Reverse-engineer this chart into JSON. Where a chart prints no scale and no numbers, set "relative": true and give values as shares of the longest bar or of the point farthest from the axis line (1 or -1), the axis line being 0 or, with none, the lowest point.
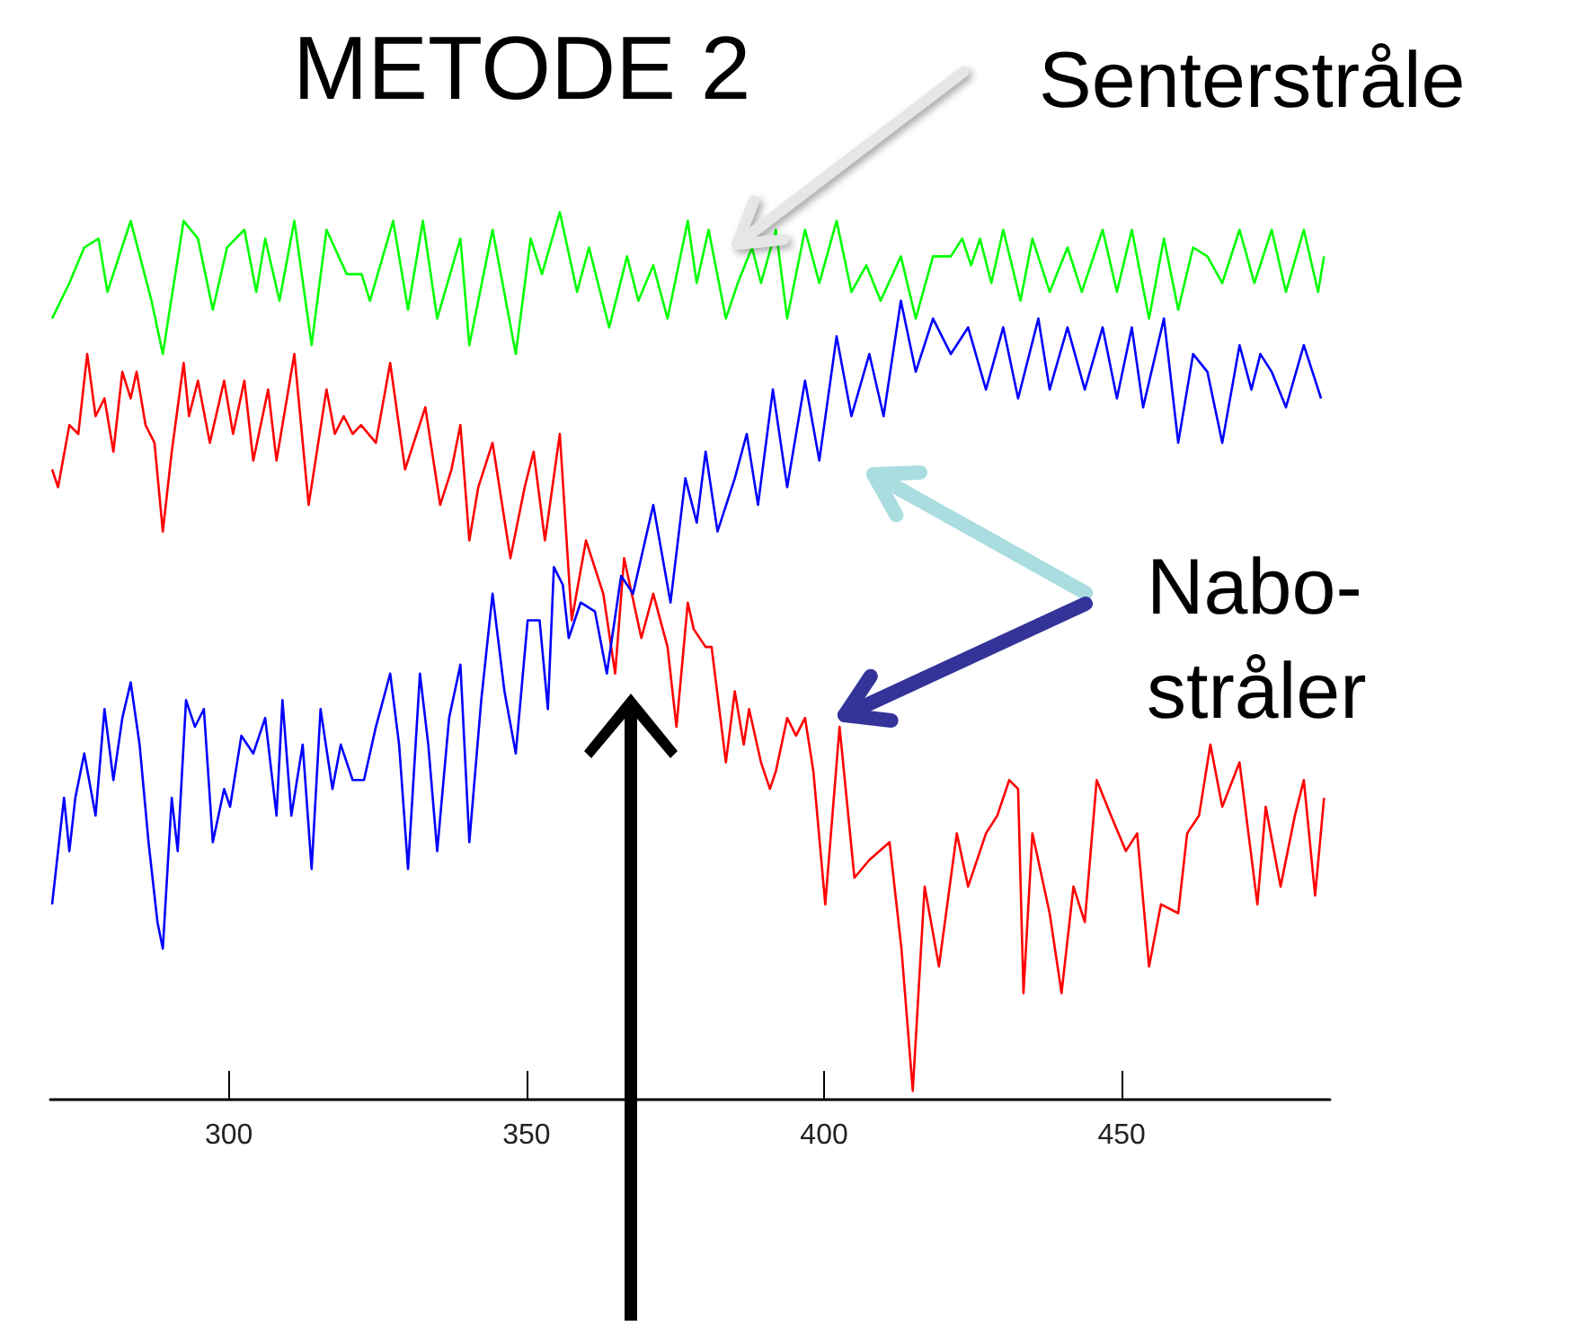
{
  "chart_data": {
    "type": "line",
    "title": "METODE 2",
    "relative": true,
    "xlim": [
      270,
      485
    ],
    "xticks": [
      300,
      350,
      400,
      450
    ],
    "grid": false,
    "annotations": [
      "Senterstråle",
      "Nabo-\nstråler"
    ],
    "series": [
      {
        "color": "#00ff00",
        "x": [
          270.3,
          273.2,
          275.7,
          278.1,
          279.6,
          283.5,
          287.0,
          288.9,
          292.4,
          294.8,
          297.3,
          299.7,
          302.6,
          304.6,
          306.1,
          308.5,
          311.0,
          313.9,
          316.4,
          319.8,
          322.3,
          323.7,
          327.6,
          330.1,
          332.6,
          335.0,
          338.9,
          340.4,
          344.3,
          348.2,
          350.7,
          352.6,
          355.6,
          358.5,
          360.5,
          363.9,
          366.9,
          368.8,
          371.3,
          373.7,
          377.1,
          378.6,
          380.6,
          383.5,
          385.5,
          387.9,
          389.4,
          391.9,
          393.8,
          396.8,
          399.2,
          402.1,
          404.6,
          407.1,
          409.5,
          412.9,
          415.4,
          418.3,
          421.3,
          423.2,
          424.7,
          426.2,
          428.1,
          430.1,
          433.0,
          435.0,
          437.9,
          440.9,
          443.3,
          446.8,
          449.2,
          451.7,
          454.6,
          457.1,
          459.5,
          462.0,
          464.4,
          466.9,
          469.8,
          472.3,
          475.2,
          477.6,
          480.6,
          483.0,
          484.0
        ],
        "values": [
          0.88,
          0.92,
          0.96,
          0.97,
          0.91,
          0.99,
          0.9,
          0.84,
          0.99,
          0.97,
          0.89,
          0.96,
          0.98,
          0.91,
          0.97,
          0.9,
          0.99,
          0.85,
          0.98,
          0.93,
          0.93,
          0.9,
          0.99,
          0.89,
          0.99,
          0.88,
          0.97,
          0.85,
          0.98,
          0.84,
          0.97,
          0.93,
          1.0,
          0.91,
          0.96,
          0.87,
          0.95,
          0.9,
          0.94,
          0.88,
          0.99,
          0.92,
          0.98,
          0.88,
          0.92,
          0.96,
          0.92,
          0.98,
          0.88,
          0.98,
          0.92,
          0.99,
          0.91,
          0.94,
          0.9,
          0.95,
          0.88,
          0.95,
          0.95,
          0.97,
          0.94,
          0.97,
          0.92,
          0.98,
          0.9,
          0.97,
          0.91,
          0.96,
          0.91,
          0.98,
          0.91,
          0.98,
          0.88,
          0.97,
          0.89,
          0.96,
          0.95,
          0.92,
          0.98,
          0.92,
          0.98,
          0.91,
          0.98,
          0.91,
          0.95
        ]
      },
      {
        "color": "#ff0000",
        "x": [
          270.3,
          271.3,
          273.2,
          274.7,
          276.2,
          277.6,
          279.1,
          280.6,
          282.1,
          283.5,
          284.5,
          286.0,
          287.5,
          288.9,
          290.4,
          292.4,
          293.3,
          294.8,
          296.8,
          299.2,
          300.7,
          302.6,
          304.1,
          306.6,
          308.0,
          311.0,
          313.4,
          316.4,
          317.8,
          319.3,
          320.8,
          322.2,
          324.7,
          327.1,
          329.6,
          333.0,
          335.5,
          337.4,
          338.9,
          340.4,
          341.9,
          344.3,
          347.3,
          349.7,
          351.2,
          353.1,
          355.6,
          357.6,
          360.0,
          362.9,
          364.9,
          366.4,
          369.3,
          371.3,
          373.7,
          375.2,
          377.1,
          378.1,
          380.1,
          381.1,
          383.5,
          385.0,
          386.5,
          387.4,
          389.4,
          390.9,
          391.9,
          393.8,
          395.3,
          396.8,
          398.2,
          400.2,
          402.6,
          405.1,
          407.6,
          411.0,
          413.0,
          414.9,
          416.9,
          419.3,
          422.3,
          424.2,
          427.2,
          429.1,
          431.1,
          432.6,
          433.5,
          435.0,
          437.9,
          439.9,
          441.9,
          443.8,
          445.8,
          448.2,
          450.7,
          452.6,
          454.6,
          456.6,
          459.5,
          461.0,
          463.0,
          464.9,
          466.9,
          469.8,
          472.8,
          474.2,
          476.7,
          479.1,
          480.6,
          482.5,
          484.0
        ],
        "values": [
          0.71,
          0.69,
          0.76,
          0.75,
          0.84,
          0.77,
          0.79,
          0.73,
          0.82,
          0.79,
          0.82,
          0.76,
          0.74,
          0.64,
          0.73,
          0.83,
          0.77,
          0.81,
          0.74,
          0.81,
          0.75,
          0.81,
          0.72,
          0.8,
          0.72,
          0.84,
          0.67,
          0.8,
          0.75,
          0.77,
          0.75,
          0.76,
          0.74,
          0.83,
          0.71,
          0.78,
          0.67,
          0.71,
          0.76,
          0.63,
          0.69,
          0.74,
          0.61,
          0.69,
          0.73,
          0.63,
          0.75,
          0.54,
          0.63,
          0.57,
          0.48,
          0.61,
          0.52,
          0.57,
          0.51,
          0.42,
          0.56,
          0.53,
          0.51,
          0.51,
          0.38,
          0.46,
          0.4,
          0.44,
          0.38,
          0.35,
          0.37,
          0.43,
          0.41,
          0.43,
          0.37,
          0.22,
          0.42,
          0.25,
          0.27,
          0.29,
          0.17,
          0.01,
          0.24,
          0.15,
          0.3,
          0.24,
          0.3,
          0.32,
          0.36,
          0.35,
          0.12,
          0.3,
          0.21,
          0.12,
          0.24,
          0.2,
          0.36,
          0.32,
          0.28,
          0.3,
          0.15,
          0.22,
          0.21,
          0.3,
          0.32,
          0.4,
          0.33,
          0.38,
          0.22,
          0.33,
          0.24,
          0.32,
          0.36,
          0.23,
          0.34
        ]
      },
      {
        "color": "#0000ff",
        "x": [
          270.3,
          271.3,
          272.3,
          273.2,
          274.2,
          275.7,
          277.6,
          279.1,
          280.6,
          282.1,
          283.5,
          285.0,
          286.5,
          288.0,
          288.9,
          290.4,
          291.4,
          292.8,
          294.3,
          295.8,
          297.3,
          299.2,
          300.2,
          302.1,
          304.1,
          306.1,
          308.0,
          309.0,
          310.5,
          312.4,
          313.9,
          315.4,
          317.4,
          318.8,
          320.8,
          322.7,
          324.7,
          327.1,
          328.6,
          330.1,
          332.1,
          333.5,
          335.0,
          337.0,
          338.9,
          340.4,
          342.4,
          344.3,
          346.3,
          348.2,
          350.2,
          352.2,
          353.6,
          354.6,
          356.1,
          357.1,
          359.1,
          361.5,
          363.5,
          365.9,
          367.9,
          371.3,
          374.2,
          376.7,
          378.6,
          380.1,
          382.1,
          385.0,
          387.0,
          388.9,
          391.4,
          393.8,
          396.8,
          399.2,
          402.1,
          404.6,
          407.6,
          410.0,
          412.9,
          415.4,
          418.3,
          421.3,
          424.2,
          427.2,
          430.1,
          432.6,
          436.0,
          437.9,
          440.9,
          443.8,
          446.8,
          449.2,
          451.7,
          453.6,
          457.1,
          459.5,
          462.0,
          464.4,
          466.9,
          469.8,
          471.8,
          473.3,
          475.2,
          477.6,
          480.6,
          483.5
        ],
        "values": [
          0.22,
          0.28,
          0.34,
          0.28,
          0.34,
          0.39,
          0.32,
          0.44,
          0.36,
          0.43,
          0.47,
          0.4,
          0.29,
          0.2,
          0.17,
          0.34,
          0.28,
          0.45,
          0.42,
          0.44,
          0.29,
          0.35,
          0.33,
          0.41,
          0.39,
          0.43,
          0.32,
          0.45,
          0.32,
          0.4,
          0.26,
          0.44,
          0.35,
          0.4,
          0.36,
          0.36,
          0.42,
          0.48,
          0.4,
          0.26,
          0.48,
          0.4,
          0.28,
          0.43,
          0.49,
          0.29,
          0.45,
          0.57,
          0.46,
          0.39,
          0.54,
          0.54,
          0.44,
          0.6,
          0.58,
          0.52,
          0.56,
          0.55,
          0.48,
          0.59,
          0.57,
          0.67,
          0.56,
          0.7,
          0.65,
          0.73,
          0.64,
          0.7,
          0.75,
          0.67,
          0.8,
          0.69,
          0.81,
          0.72,
          0.86,
          0.77,
          0.84,
          0.77,
          0.9,
          0.82,
          0.88,
          0.84,
          0.87,
          0.8,
          0.87,
          0.79,
          0.88,
          0.8,
          0.87,
          0.8,
          0.87,
          0.79,
          0.87,
          0.78,
          0.88,
          0.74,
          0.84,
          0.82,
          0.74,
          0.85,
          0.8,
          0.84,
          0.82,
          0.78,
          0.85,
          0.79
        ]
      }
    ]
  }
}
